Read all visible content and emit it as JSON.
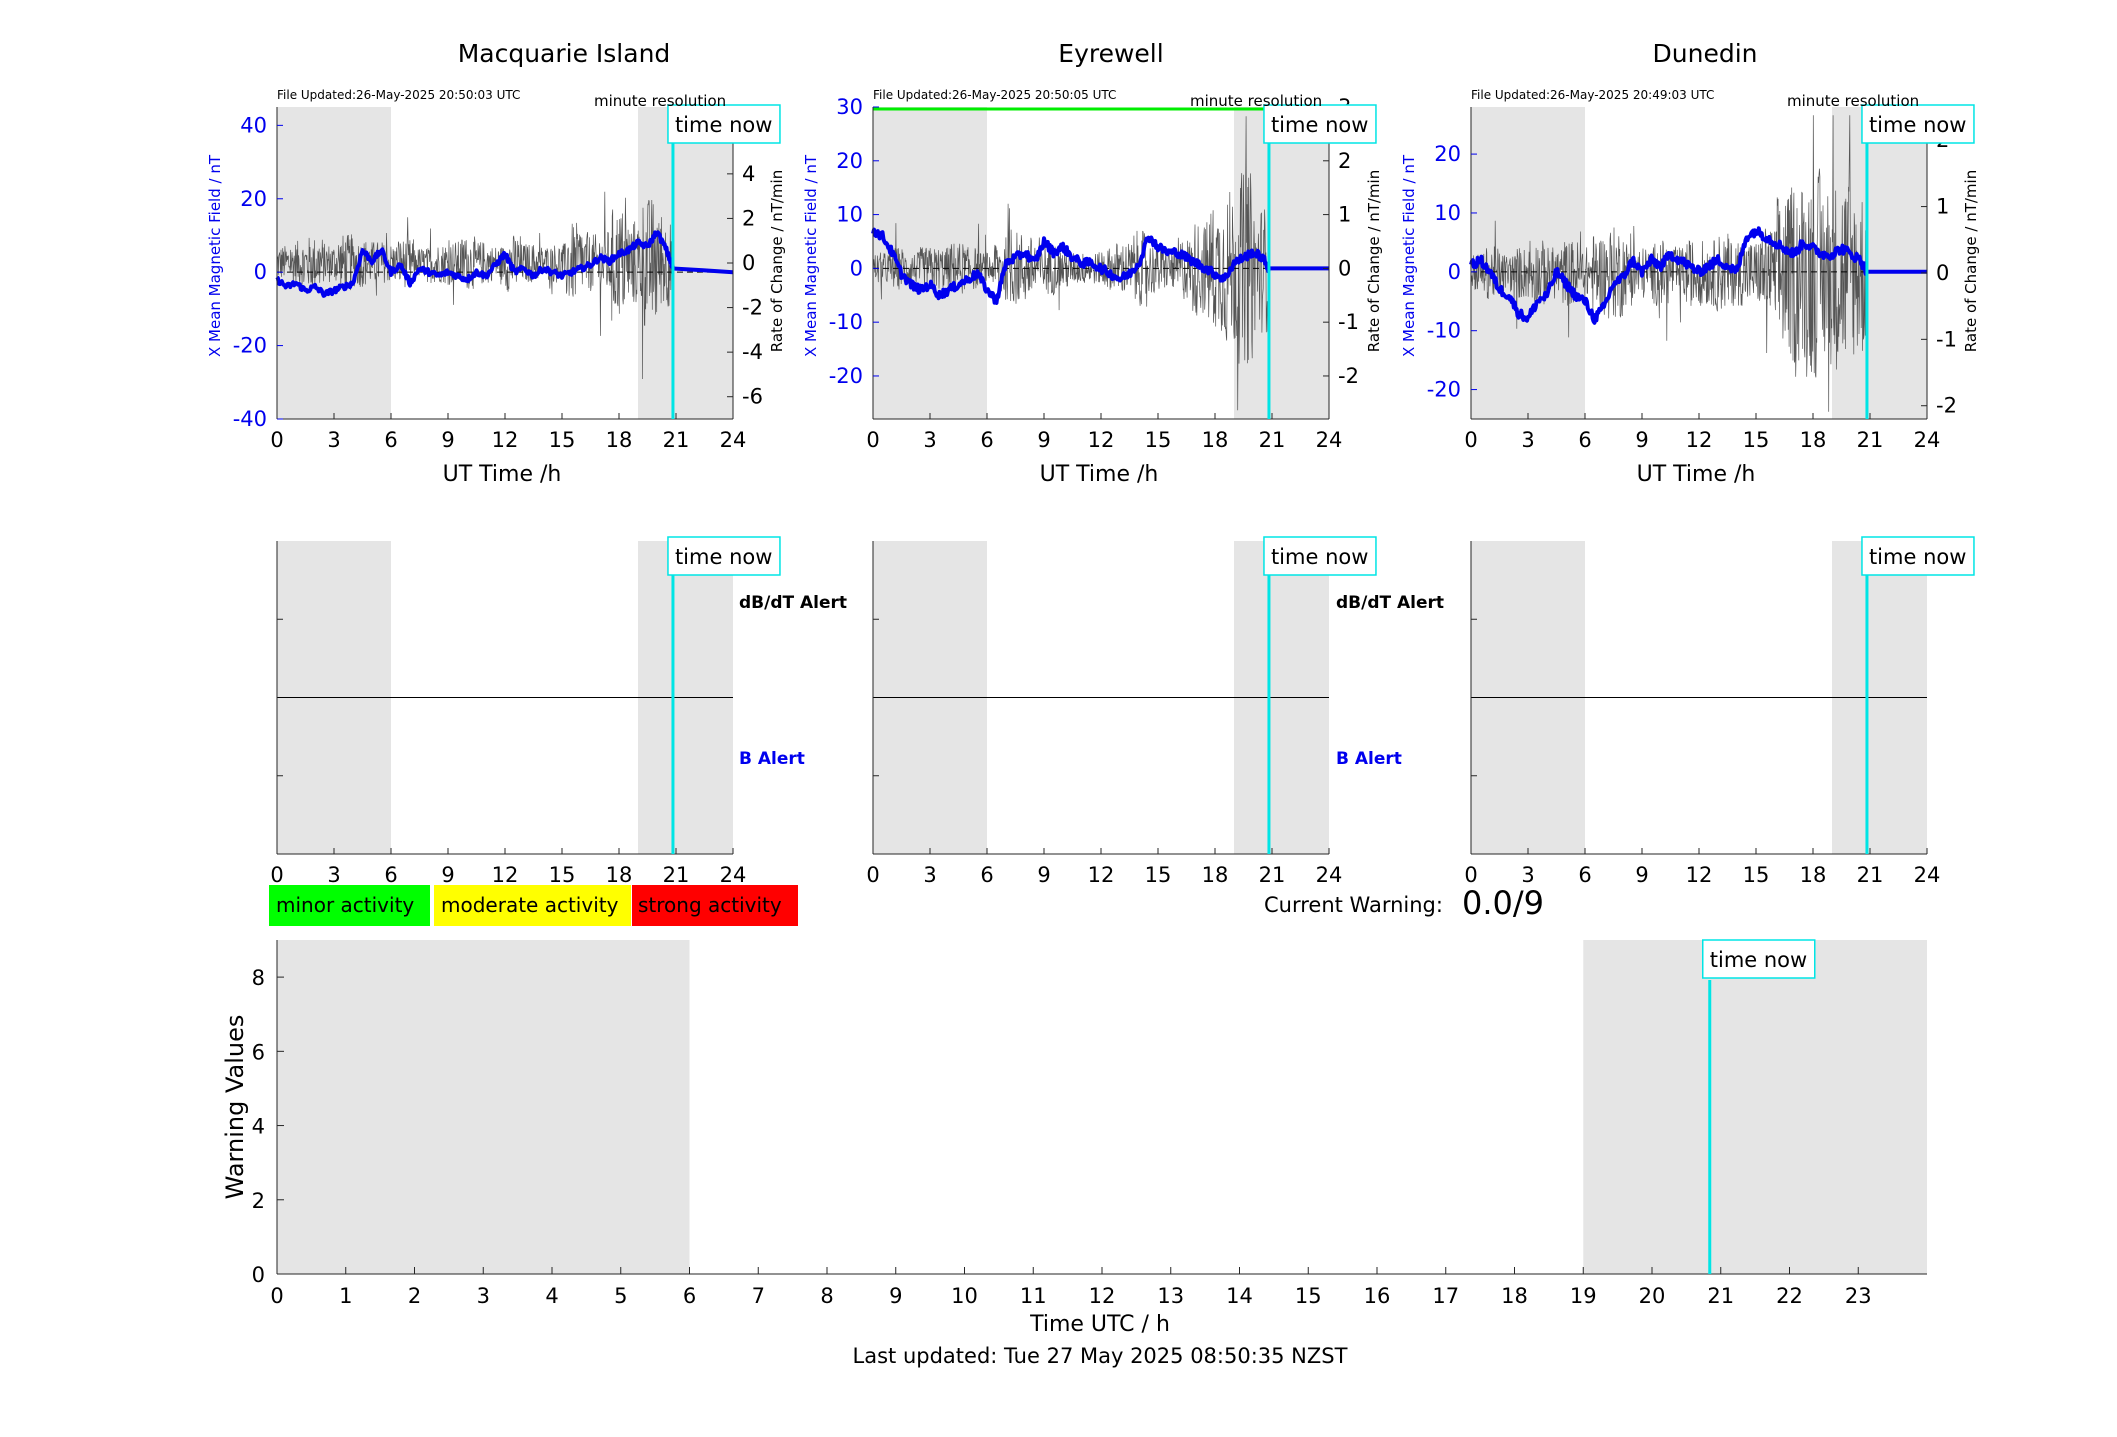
{
  "stations": [
    {
      "title": "Macquarie Island",
      "file_updated": "File Updated:26-May-2025 20:50:03 UTC",
      "resolution": "minute resolution",
      "left_ylabel": "X Mean Magnetic Field / nT",
      "right_ylabel": "Rate of Change / nT/min",
      "xlabel": "UT Time /h",
      "dbdt_label": "dB/dT Alert",
      "b_label": "B Alert"
    },
    {
      "title": "Eyrewell",
      "file_updated": "File Updated:26-May-2025 20:50:05 UTC",
      "resolution": "minute resolution",
      "left_ylabel": "X Mean Magnetic Field / nT",
      "right_ylabel": "Rate of Change / nT/min",
      "xlabel": "UT Time /h",
      "dbdt_label": "dB/dT Alert",
      "b_label": "B Alert"
    },
    {
      "title": "Dunedin",
      "file_updated": "File Updated:26-May-2025 20:49:03 UTC",
      "resolution": "minute resolution",
      "left_ylabel": "X Mean Magnetic Field / nT",
      "right_ylabel": "Rate of Change / nT/min",
      "xlabel": "UT Time /h",
      "dbdt_label": "",
      "b_label": ""
    }
  ],
  "time_now_label": "time now",
  "legend": [
    {
      "label": "minor activity",
      "color": "#00ff00"
    },
    {
      "label": "moderate activity",
      "color": "#ffff00"
    },
    {
      "label": "strong activity",
      "color": "#ff0000"
    }
  ],
  "current_warning_label": "Current Warning:",
  "current_warning_value": "0.0/9",
  "warning_ylabel": "Warning Values",
  "warning_xlabel": "Time UTC / h",
  "last_updated": "Last updated: Tue 27 May 2025 08:50:35 NZST",
  "colors": {
    "field": "#0000ee",
    "rate": "#555555",
    "now_line": "#00e5e5",
    "shade": "#e5e5e5",
    "threshold": "#00ee00"
  },
  "chart_data": [
    {
      "type": "line",
      "station": "Macquarie Island",
      "x_range": [
        0,
        24
      ],
      "x_ticks": [
        0,
        3,
        6,
        9,
        12,
        15,
        18,
        21,
        24
      ],
      "left_ylim": [
        -40,
        45
      ],
      "left_ticks": [
        -40,
        -20,
        0,
        20,
        40
      ],
      "right_ylim": [
        -7,
        7
      ],
      "right_ticks": [
        -6,
        -4,
        -2,
        0,
        2,
        4,
        6
      ],
      "shaded_hours": [
        [
          0,
          6
        ],
        [
          19,
          24
        ]
      ],
      "time_now": 20.84,
      "series": [
        {
          "name": "X Mean Magnetic Field",
          "axis": "left",
          "x": [
            0,
            0.5,
            1,
            1.5,
            2,
            2.5,
            3,
            3.5,
            4,
            4.5,
            5,
            5.5,
            6,
            6.5,
            7,
            7.5,
            8,
            8.5,
            9,
            9.5,
            10,
            10.5,
            11,
            11.5,
            12,
            12.5,
            13,
            13.5,
            14,
            14.5,
            15,
            15.5,
            16,
            16.5,
            17,
            17.5,
            18,
            18.5,
            19,
            19.5,
            20,
            20.5,
            20.84,
            24
          ],
          "y": [
            -2,
            -4,
            -3,
            -5,
            -4,
            -6,
            -5,
            -4,
            -3,
            6,
            3,
            6,
            0,
            2,
            -3,
            1,
            0,
            -1,
            0,
            -1,
            -2,
            0,
            -1,
            2,
            5,
            0,
            1,
            -1,
            1,
            0,
            -1,
            0,
            1,
            2,
            4,
            3,
            5,
            6,
            8,
            7,
            11,
            6,
            1,
            0
          ]
        },
        {
          "name": "Rate of Change",
          "axis": "right",
          "amplitude_envelope": [
            0.8,
            1.0,
            1.2,
            0.9,
            1.3,
            1.1,
            1.0,
            0.9,
            1.1,
            0.7,
            0.9,
            1.0,
            1.2,
            1.0,
            0.8,
            1.3,
            0.9,
            0.8,
            0.9,
            1.8,
            1.3,
            1.5,
            2.5,
            2.0,
            3.0,
            2.0,
            0.5
          ]
        }
      ]
    },
    {
      "type": "line",
      "station": "Eyrewell",
      "x_range": [
        0,
        24
      ],
      "x_ticks": [
        0,
        3,
        6,
        9,
        12,
        15,
        18,
        21,
        24
      ],
      "left_ylim": [
        -28,
        30
      ],
      "left_ticks": [
        -20,
        -10,
        0,
        10,
        20,
        30
      ],
      "right_ylim": [
        -2.8,
        3
      ],
      "right_ticks": [
        -2,
        -1,
        0,
        1,
        2,
        3
      ],
      "shaded_hours": [
        [
          0,
          6
        ],
        [
          19,
          24
        ]
      ],
      "time_now": 20.84,
      "threshold_line": 30,
      "series": [
        {
          "name": "X Mean Magnetic Field",
          "axis": "left",
          "x": [
            0,
            0.5,
            1,
            1.5,
            2,
            2.5,
            3,
            3.5,
            4,
            4.5,
            5,
            5.5,
            6,
            6.5,
            7,
            7.5,
            8,
            8.5,
            9,
            9.5,
            10,
            10.5,
            11,
            11.5,
            12,
            12.5,
            13,
            13.5,
            14,
            14.5,
            15,
            15.5,
            16,
            16.5,
            17,
            17.5,
            18,
            18.5,
            19,
            19.5,
            20,
            20.5,
            20.84,
            24
          ],
          "y": [
            7,
            6,
            3,
            -1,
            -3,
            -4,
            -3,
            -5,
            -4,
            -3,
            -2,
            -1,
            -4,
            -6,
            1,
            2,
            3,
            1,
            5,
            3,
            4,
            2,
            1,
            1,
            0,
            -1,
            -2,
            -1,
            1,
            6,
            4,
            3,
            3,
            2,
            1,
            0,
            -1,
            -2,
            1,
            2,
            3,
            2,
            0,
            0
          ]
        },
        {
          "name": "Rate of Change",
          "axis": "right",
          "amplitude_envelope": [
            0.3,
            0.4,
            0.3,
            0.4,
            0.4,
            0.5,
            0.4,
            0.3,
            0.6,
            0.7,
            0.6,
            0.5,
            0.4,
            0.3,
            0.3,
            0.4,
            0.5,
            0.7,
            0.5,
            0.4,
            0.6,
            0.9,
            1.2,
            1.5,
            1.8,
            1.2,
            0.4
          ]
        }
      ]
    },
    {
      "type": "line",
      "station": "Dunedin",
      "x_range": [
        0,
        24
      ],
      "x_ticks": [
        0,
        3,
        6,
        9,
        12,
        15,
        18,
        21,
        24
      ],
      "left_ylim": [
        -25,
        28
      ],
      "left_ticks": [
        -20,
        -10,
        0,
        10,
        20
      ],
      "right_ylim": [
        -2.2,
        2.5
      ],
      "right_ticks": [
        -2,
        -1,
        0,
        1,
        2
      ],
      "shaded_hours": [
        [
          0,
          6
        ],
        [
          19,
          24
        ]
      ],
      "time_now": 20.84,
      "series": [
        {
          "name": "X Mean Magnetic Field",
          "axis": "left",
          "x": [
            0,
            0.5,
            1,
            1.5,
            2,
            2.5,
            3,
            3.5,
            4,
            4.5,
            5,
            5.5,
            6,
            6.5,
            7,
            7.5,
            8,
            8.5,
            9,
            9.5,
            10,
            10.5,
            11,
            11.5,
            12,
            12.5,
            13,
            13.5,
            14,
            14.5,
            15,
            15.5,
            16,
            16.5,
            17,
            17.5,
            18,
            18.5,
            19,
            19.5,
            20,
            20.5,
            20.84,
            24
          ],
          "y": [
            1,
            2,
            0,
            -3,
            -4,
            -7,
            -8,
            -5,
            -4,
            0,
            -2,
            -4,
            -5,
            -8,
            -6,
            -2,
            -1,
            2,
            0,
            2,
            1,
            3,
            2,
            1,
            0,
            1,
            2,
            1,
            0,
            6,
            7,
            6,
            5,
            4,
            3,
            5,
            4,
            3,
            3,
            4,
            3,
            2,
            0,
            0
          ]
        },
        {
          "name": "Rate of Change",
          "axis": "right",
          "amplitude_envelope": [
            0.3,
            0.4,
            0.3,
            0.4,
            0.5,
            0.4,
            0.5,
            0.4,
            0.6,
            0.7,
            0.5,
            0.4,
            0.5,
            0.4,
            0.5,
            0.5,
            0.6,
            0.5,
            0.5,
            0.7,
            1.2,
            1.4,
            1.6,
            1.4,
            1.5,
            1.3,
            0.3
          ]
        }
      ]
    },
    {
      "type": "line",
      "title": "",
      "x_range": [
        0,
        24
      ],
      "x_ticks": [
        0,
        3,
        6,
        9,
        12,
        15,
        18,
        21,
        24
      ],
      "ylim": [
        0,
        1
      ],
      "shaded_hours": [
        [
          0,
          6
        ],
        [
          19,
          24
        ]
      ],
      "time_now": 20.84,
      "series": [
        {
          "name": "alert",
          "x": [
            0,
            24
          ],
          "y": [
            0.5,
            0.5
          ]
        }
      ]
    },
    {
      "type": "line",
      "x_range": [
        0,
        24
      ],
      "x_ticks": [
        0,
        3,
        6,
        9,
        12,
        15,
        18,
        21,
        24
      ],
      "ylim": [
        0,
        1
      ],
      "shaded_hours": [
        [
          0,
          6
        ],
        [
          19,
          24
        ]
      ],
      "time_now": 20.84,
      "series": [
        {
          "name": "alert",
          "x": [
            0,
            24
          ],
          "y": [
            0.5,
            0.5
          ]
        }
      ]
    },
    {
      "type": "line",
      "x_range": [
        0,
        24
      ],
      "x_ticks": [
        0,
        3,
        6,
        9,
        12,
        15,
        18,
        21,
        24
      ],
      "ylim": [
        0,
        1
      ],
      "shaded_hours": [
        [
          0,
          6
        ],
        [
          19,
          24
        ]
      ],
      "time_now": 20.84,
      "series": [
        {
          "name": "alert",
          "x": [
            0,
            24
          ],
          "y": [
            0.5,
            0.5
          ]
        }
      ]
    },
    {
      "type": "bar",
      "x_range": [
        0,
        24
      ],
      "x_ticks": [
        0,
        1,
        2,
        3,
        4,
        5,
        6,
        7,
        8,
        9,
        10,
        11,
        12,
        13,
        14,
        15,
        16,
        17,
        18,
        19,
        20,
        21,
        22,
        23
      ],
      "ylim": [
        0,
        9
      ],
      "y_ticks": [
        0,
        2,
        4,
        6,
        8
      ],
      "xlabel": "Time UTC / h",
      "ylabel": "Warning Values",
      "shaded_hours": [
        [
          0,
          6
        ],
        [
          19,
          24
        ]
      ],
      "time_now": 20.84,
      "values": []
    }
  ]
}
